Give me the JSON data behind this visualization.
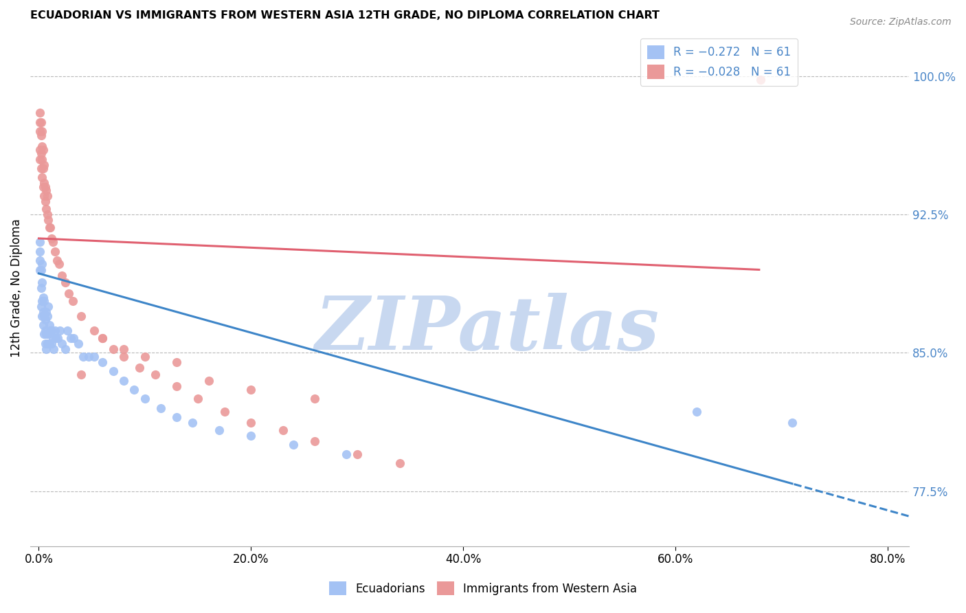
{
  "title": "ECUADORIAN VS IMMIGRANTS FROM WESTERN ASIA 12TH GRADE, NO DIPLOMA CORRELATION CHART",
  "source": "Source: ZipAtlas.com",
  "ylabel_left": "12th Grade, No Diploma",
  "x_tick_labels": [
    "0.0%",
    "20.0%",
    "40.0%",
    "60.0%",
    "80.0%"
  ],
  "x_tick_values": [
    0.0,
    0.2,
    0.4,
    0.6,
    0.8
  ],
  "y_tick_labels": [
    "77.5%",
    "85.0%",
    "92.5%",
    "100.0%"
  ],
  "y_tick_values": [
    0.775,
    0.85,
    0.925,
    1.0
  ],
  "ylim": [
    0.745,
    1.025
  ],
  "xlim": [
    -0.008,
    0.82
  ],
  "legend_blue_label": "R = −0.272   N = 61",
  "legend_pink_label": "R = −0.028   N = 61",
  "blue_color": "#a4c2f4",
  "pink_color": "#ea9999",
  "blue_line_color": "#3d85c8",
  "pink_line_color": "#e06070",
  "watermark_text": "ZIPatlas",
  "watermark_color": "#c8d8f0",
  "blue_r": -0.272,
  "pink_r": -0.028,
  "n": 61,
  "blue_line_x0": 0.0,
  "blue_line_y0": 0.893,
  "blue_line_x1": 0.71,
  "blue_line_y1": 0.779,
  "pink_line_x0": 0.0,
  "pink_line_y0": 0.912,
  "pink_line_x1": 0.68,
  "pink_line_y1": 0.895,
  "blue_scatter_x": [
    0.001,
    0.001,
    0.001,
    0.001,
    0.002,
    0.002,
    0.002,
    0.003,
    0.003,
    0.003,
    0.003,
    0.004,
    0.004,
    0.004,
    0.005,
    0.005,
    0.005,
    0.006,
    0.006,
    0.006,
    0.007,
    0.007,
    0.007,
    0.008,
    0.008,
    0.009,
    0.009,
    0.01,
    0.01,
    0.011,
    0.012,
    0.012,
    0.013,
    0.014,
    0.015,
    0.016,
    0.018,
    0.02,
    0.022,
    0.025,
    0.027,
    0.03,
    0.033,
    0.037,
    0.042,
    0.047,
    0.052,
    0.06,
    0.07,
    0.08,
    0.09,
    0.1,
    0.115,
    0.13,
    0.145,
    0.17,
    0.2,
    0.24,
    0.29,
    0.62,
    0.71
  ],
  "blue_scatter_y": [
    0.895,
    0.9,
    0.905,
    0.91,
    0.875,
    0.885,
    0.895,
    0.87,
    0.878,
    0.888,
    0.898,
    0.865,
    0.872,
    0.88,
    0.86,
    0.87,
    0.878,
    0.862,
    0.855,
    0.868,
    0.852,
    0.86,
    0.872,
    0.855,
    0.87,
    0.86,
    0.875,
    0.855,
    0.865,
    0.862,
    0.855,
    0.862,
    0.858,
    0.852,
    0.862,
    0.858,
    0.858,
    0.862,
    0.855,
    0.852,
    0.862,
    0.858,
    0.858,
    0.855,
    0.848,
    0.848,
    0.848,
    0.845,
    0.84,
    0.835,
    0.83,
    0.825,
    0.82,
    0.815,
    0.812,
    0.808,
    0.805,
    0.8,
    0.795,
    0.818,
    0.812
  ],
  "pink_scatter_x": [
    0.001,
    0.001,
    0.001,
    0.001,
    0.001,
    0.002,
    0.002,
    0.002,
    0.002,
    0.003,
    0.003,
    0.003,
    0.003,
    0.004,
    0.004,
    0.004,
    0.005,
    0.005,
    0.005,
    0.006,
    0.006,
    0.007,
    0.007,
    0.008,
    0.008,
    0.009,
    0.01,
    0.011,
    0.012,
    0.013,
    0.015,
    0.017,
    0.019,
    0.022,
    0.025,
    0.028,
    0.032,
    0.04,
    0.052,
    0.06,
    0.07,
    0.08,
    0.095,
    0.11,
    0.13,
    0.15,
    0.175,
    0.2,
    0.23,
    0.26,
    0.3,
    0.34,
    0.06,
    0.08,
    0.1,
    0.13,
    0.04,
    0.16,
    0.2,
    0.26,
    0.68
  ],
  "pink_scatter_y": [
    0.96,
    0.955,
    0.97,
    0.975,
    0.98,
    0.95,
    0.958,
    0.968,
    0.975,
    0.945,
    0.955,
    0.962,
    0.97,
    0.94,
    0.95,
    0.96,
    0.935,
    0.942,
    0.952,
    0.932,
    0.94,
    0.928,
    0.938,
    0.925,
    0.935,
    0.922,
    0.918,
    0.918,
    0.912,
    0.91,
    0.905,
    0.9,
    0.898,
    0.892,
    0.888,
    0.882,
    0.878,
    0.87,
    0.862,
    0.858,
    0.852,
    0.848,
    0.842,
    0.838,
    0.832,
    0.825,
    0.818,
    0.812,
    0.808,
    0.802,
    0.795,
    0.79,
    0.858,
    0.852,
    0.848,
    0.845,
    0.838,
    0.835,
    0.83,
    0.825,
    0.998
  ]
}
